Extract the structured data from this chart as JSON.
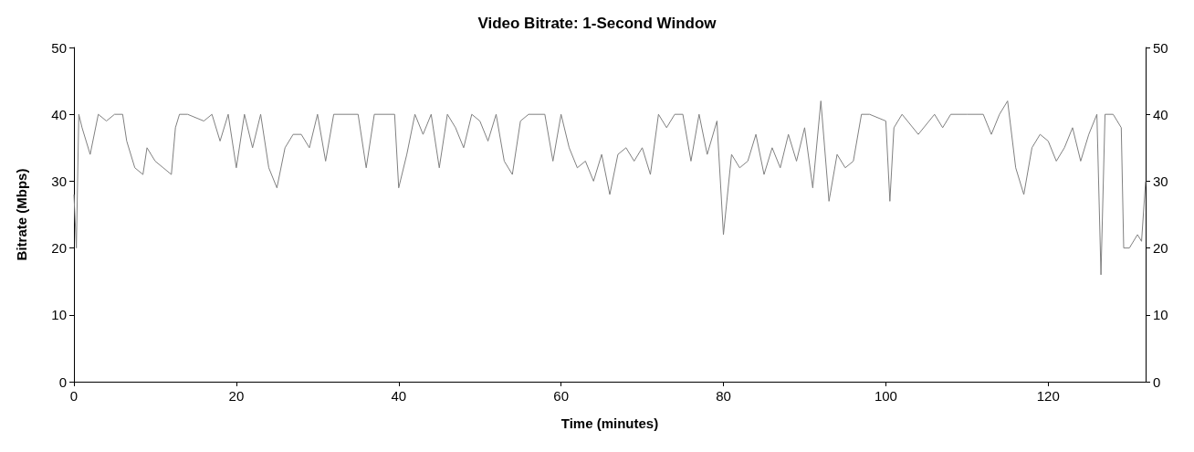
{
  "chart_data": {
    "type": "line",
    "title": "Video Bitrate: 1-Second Window",
    "xlabel": "Time (minutes)",
    "ylabel": "Bitrate (Mbps)",
    "xlim": [
      0,
      132
    ],
    "xticks": [
      0,
      20,
      40,
      60,
      80,
      100,
      120
    ],
    "ylim": [
      0,
      50
    ],
    "yticks": [
      0,
      10,
      20,
      30,
      40,
      50
    ],
    "y2lim": [
      0,
      50
    ],
    "y2ticks": [
      0,
      10,
      20,
      30,
      40,
      50
    ],
    "grid": false,
    "marker": "none",
    "line_style": "solid",
    "series": [
      {
        "color": "#808080",
        "x": [
          0,
          0.3,
          0.6,
          1,
          2,
          3,
          4,
          5,
          6,
          6.5,
          7.5,
          8.5,
          9,
          10,
          11,
          12,
          12.5,
          13,
          14,
          16,
          17,
          18,
          19,
          20,
          21,
          22,
          23,
          24,
          25,
          26,
          27,
          28,
          29,
          30,
          31,
          32,
          35,
          36,
          37,
          39.5,
          40,
          41,
          42,
          43,
          44,
          45,
          46,
          47,
          48,
          49,
          50,
          51,
          52,
          53,
          54,
          55,
          56,
          58,
          59,
          60,
          61,
          62,
          63,
          64,
          65,
          66,
          67,
          68,
          69,
          70,
          71,
          72,
          73,
          74,
          75,
          76,
          77,
          78,
          79.2,
          80,
          81,
          82,
          83,
          84,
          85,
          86,
          87,
          88,
          89,
          90,
          91,
          92,
          93,
          94,
          95,
          96,
          97,
          98,
          100,
          100.5,
          101,
          102,
          104,
          106,
          107,
          108,
          110,
          112,
          113,
          114,
          115,
          116,
          117,
          118,
          119,
          120,
          121,
          122,
          123,
          124,
          125,
          126,
          126.5,
          127,
          128,
          129,
          129.3,
          130,
          131,
          131.5,
          132
        ],
        "values": [
          28,
          20,
          40,
          38,
          34,
          40,
          39,
          40,
          40,
          36,
          32,
          31,
          35,
          33,
          32,
          31,
          38,
          40,
          40,
          39,
          40,
          36,
          40,
          32,
          40,
          35,
          40,
          32,
          29,
          35,
          37,
          37,
          35,
          40,
          33,
          40,
          40,
          32,
          40,
          40,
          29,
          34,
          40,
          37,
          40,
          32,
          40,
          38,
          35,
          40,
          39,
          36,
          40,
          33,
          31,
          39,
          40,
          40,
          33,
          40,
          35,
          32,
          33,
          30,
          34,
          28,
          34,
          35,
          33,
          35,
          31,
          40,
          38,
          40,
          40,
          33,
          40,
          34,
          39,
          22,
          34,
          32,
          33,
          37,
          31,
          35,
          32,
          37,
          33,
          38,
          29,
          42,
          27,
          34,
          32,
          33,
          40,
          40,
          39,
          27,
          38,
          40,
          37,
          40,
          38,
          40,
          40,
          40,
          37,
          40,
          42,
          32,
          28,
          35,
          37,
          36,
          33,
          35,
          38,
          33,
          37,
          40,
          16,
          40,
          40,
          38,
          20,
          20,
          22,
          21,
          30
        ]
      }
    ]
  }
}
